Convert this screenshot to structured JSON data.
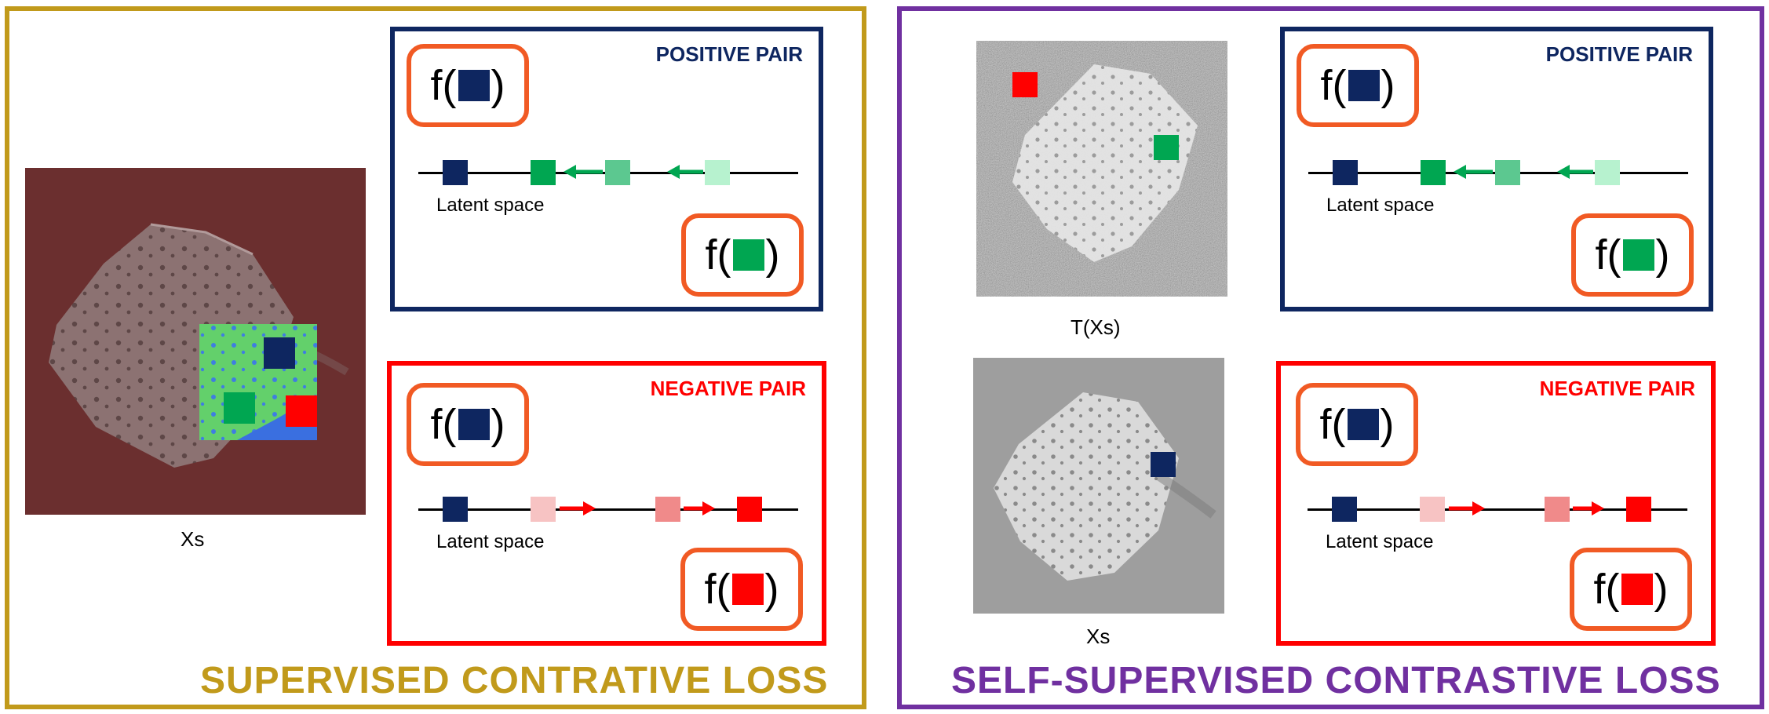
{
  "colors": {
    "supervised_border": "#c19a1b",
    "self_supervised_border": "#7030a0",
    "positive": "#0e2660",
    "negative": "#ff0000",
    "anchor_square": "#0e2660",
    "positive_square": "#00a651",
    "negative_square": "#ff0000",
    "fbox_border": "#f15a24"
  },
  "left_panel": {
    "title": "SUPERVISED CONTRATIVE LOSS",
    "image_caption": "Xs",
    "positive_box": {
      "label": "POSITIVE PAIR",
      "latent_label": "Latent space",
      "f_open": "f(",
      "f_close": ")"
    },
    "negative_box": {
      "label": "NEGATIVE PAIR",
      "latent_label": "Latent space",
      "f_open": "f(",
      "f_close": ")"
    }
  },
  "right_panel": {
    "title": "SELF-SUPERVISED CONTRASTIVE  LOSS",
    "top_image_caption": "T(Xs)",
    "bottom_image_caption": "Xs",
    "positive_box": {
      "label": "POSITIVE PAIR",
      "latent_label": "Latent space",
      "f_open": "f(",
      "f_close": ")"
    },
    "negative_box": {
      "label": "NEGATIVE PAIR",
      "latent_label": "Latent space",
      "f_open": "f(",
      "f_close": ")"
    }
  }
}
